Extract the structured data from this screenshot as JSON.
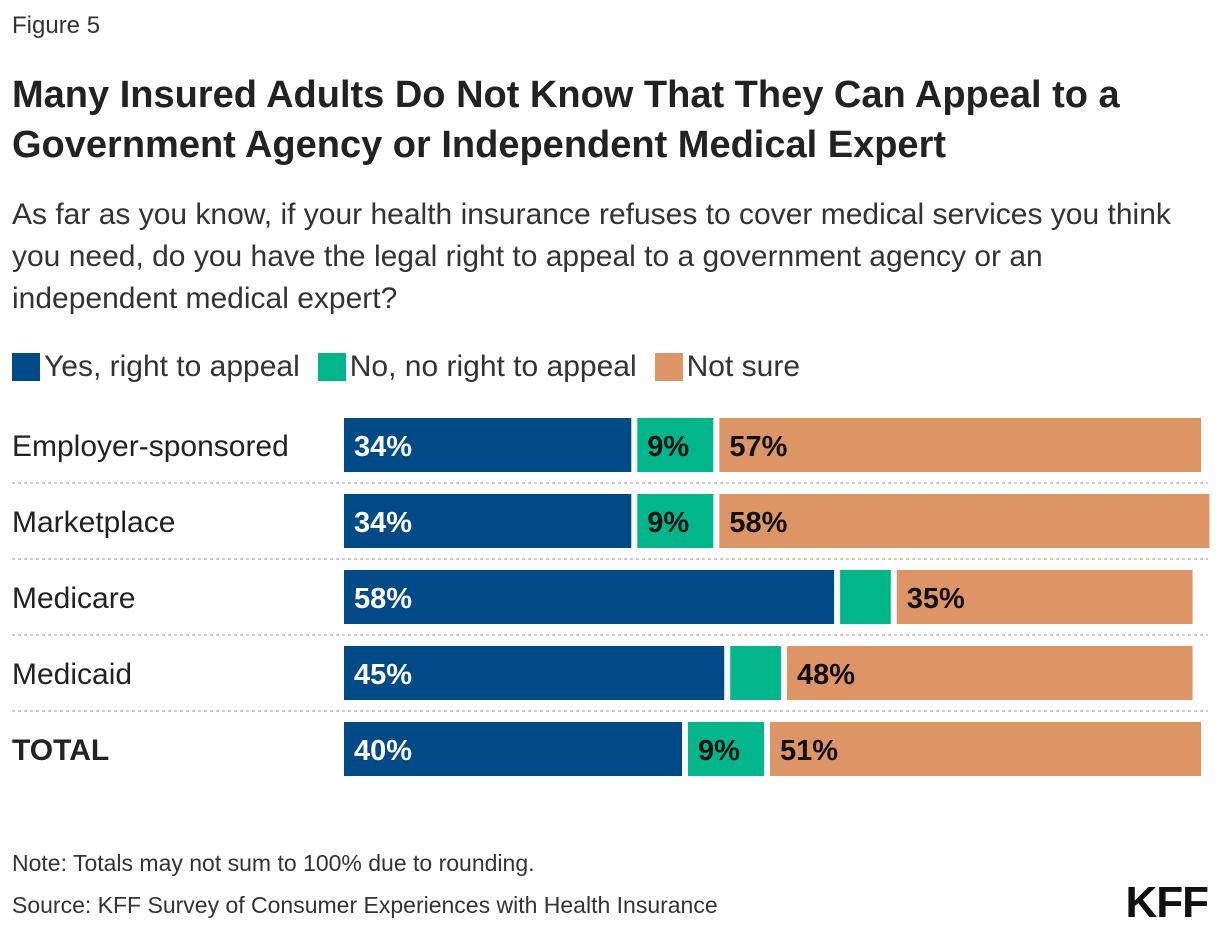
{
  "figure_label": "Figure 5",
  "title": "Many Insured Adults Do Not Know That They Can Appeal to a Government Agency or Independent Medical Expert",
  "subtitle": "As far as you know, if your health insurance refuses to cover medical services you think you need, do you have the legal right to appeal to a government agency or an independent medical expert?",
  "note": "Note: Totals may not sum to 100% due to rounding.",
  "source": "Source: KFF Survey of Consumer Experiences with Health Insurance",
  "logo": "KFF",
  "chart_data": {
    "type": "bar",
    "orientation": "horizontal",
    "stacked": true,
    "categories": [
      "Employer-sponsored",
      "Marketplace",
      "Medicare",
      "Medicaid",
      "TOTAL"
    ],
    "series": [
      {
        "name": "Yes, right to appeal",
        "color": "#004a87",
        "values": [
          34,
          34,
          58,
          45,
          40
        ],
        "labels": [
          "34%",
          "34%",
          "58%",
          "45%",
          "40%"
        ]
      },
      {
        "name": "No, no right to appeal",
        "color": "#00b68a",
        "values": [
          9,
          9,
          6,
          6,
          9
        ],
        "labels": [
          "9%",
          "9%",
          "",
          "",
          "9%"
        ]
      },
      {
        "name": "Not sure",
        "color": "#dd9565",
        "values": [
          57,
          58,
          35,
          48,
          51
        ],
        "labels": [
          "57%",
          "58%",
          "35%",
          "48%",
          "51%"
        ]
      }
    ],
    "legend_position": "top-left",
    "grid": false
  }
}
